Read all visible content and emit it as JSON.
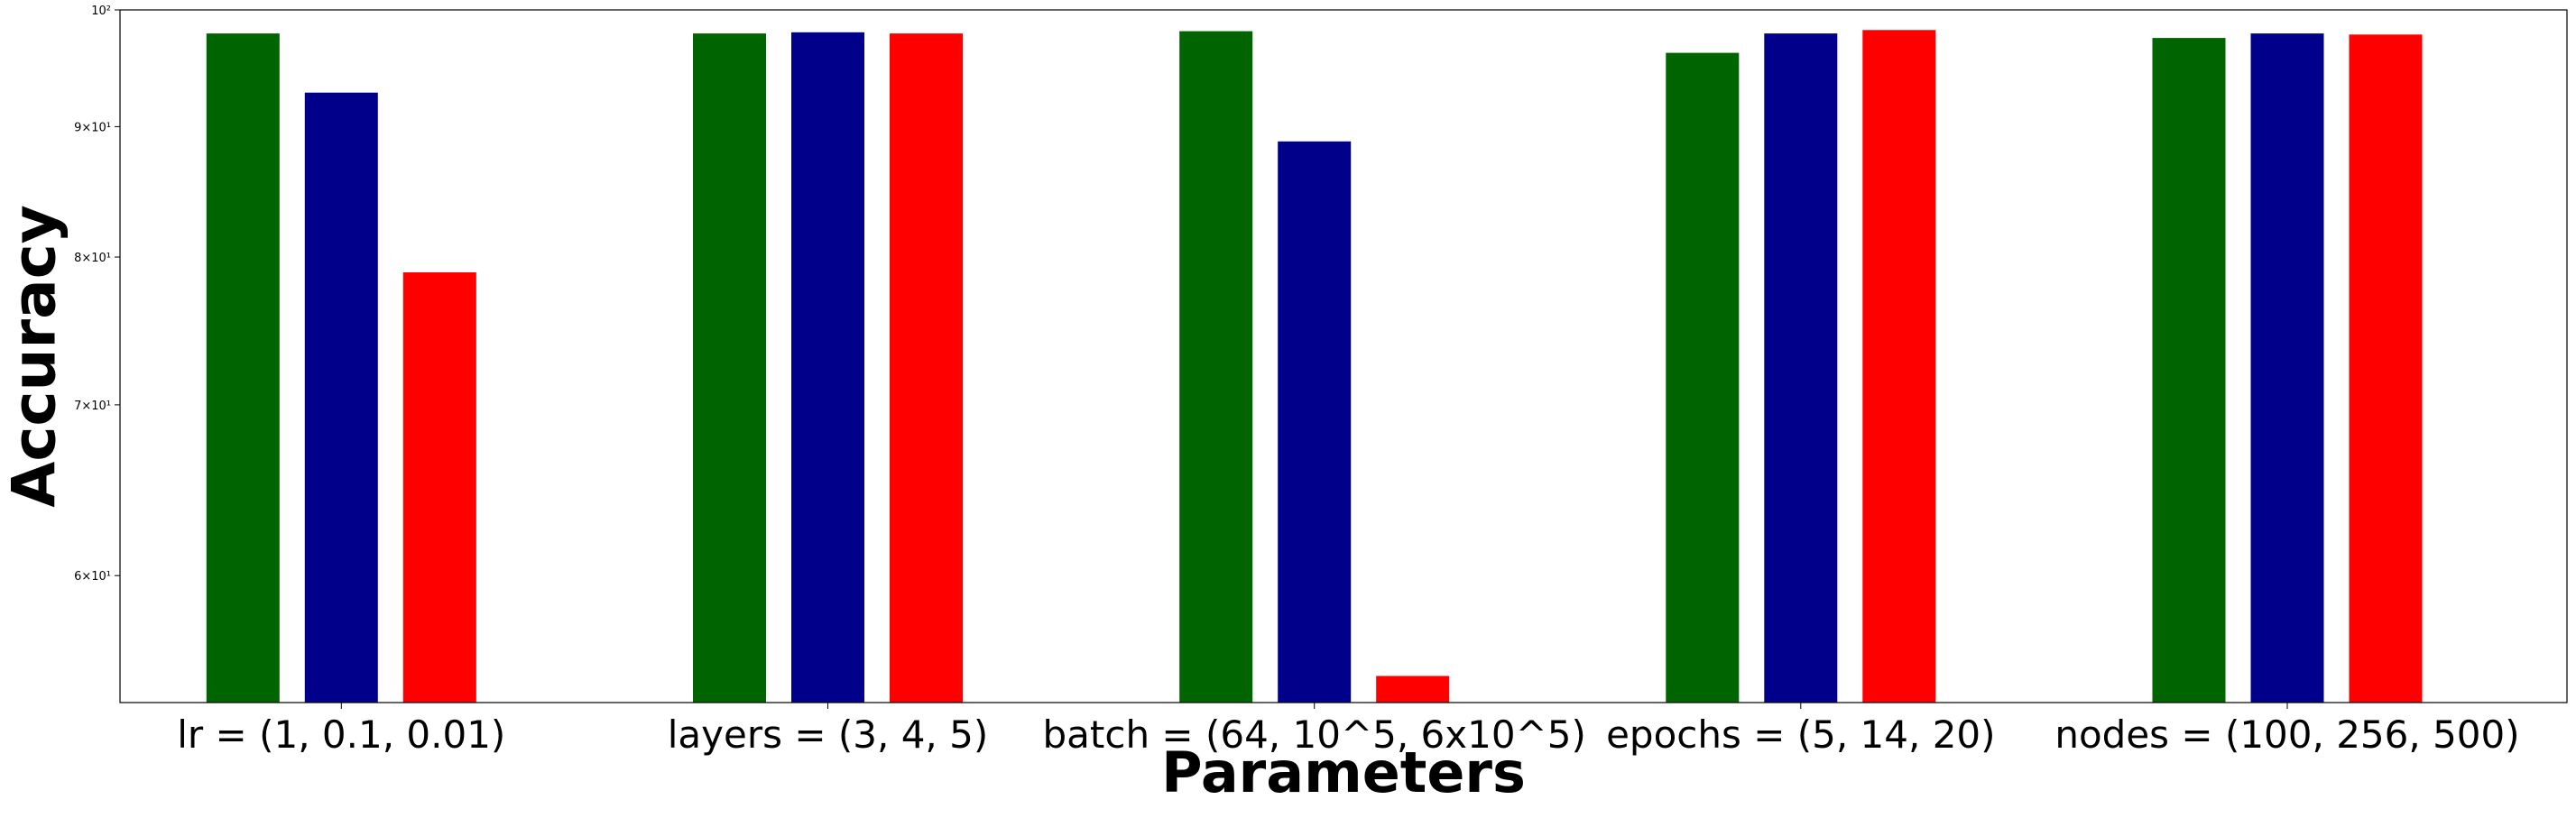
{
  "chart_data": {
    "type": "bar",
    "title": "",
    "xlabel": "Parameters",
    "ylabel": "Accuracy",
    "yscale": "log",
    "ylim": [
      53.5,
      100
    ],
    "yticks": [
      {
        "value": 100,
        "label": "10²"
      },
      {
        "value": 90,
        "label": "9×10¹"
      },
      {
        "value": 80,
        "label": "8×10¹"
      },
      {
        "value": 70,
        "label": "7×10¹"
      },
      {
        "value": 60,
        "label": "6×10¹"
      }
    ],
    "grid": false,
    "legend": "none",
    "categories": [
      "lr = (1, 0.1, 0.01)",
      "layers = (3, 4, 5)",
      "batch = (64, 10^5, 6x10^5)",
      "epochs = (5, 14, 20)",
      "nodes = (100, 256, 500)"
    ],
    "series": [
      {
        "color": "#006400",
        "values": [
          97.9,
          97.9,
          98.1,
          96.2,
          97.5
        ]
      },
      {
        "color": "#00008b",
        "values": [
          92.8,
          98.0,
          88.8,
          97.9,
          97.9
        ]
      },
      {
        "color": "#ff0000",
        "values": [
          78.9,
          97.9,
          54.8,
          98.2,
          97.8
        ]
      }
    ]
  }
}
